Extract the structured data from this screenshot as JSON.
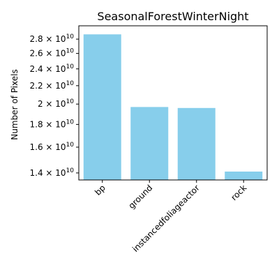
{
  "chart_data": {
    "type": "bar",
    "title": "SeasonalForestWinterNight",
    "xlabel": "",
    "ylabel": "Number of Pixels",
    "y_scale": "log",
    "ylim": [
      13500000000,
      30000000000
    ],
    "categories": [
      "bp",
      "ground",
      "instancedfoliageactor",
      "rock"
    ],
    "values": [
      28700000000,
      19700000000,
      19600000000,
      14100000000
    ],
    "bar_color": "#87ceeb",
    "y_ticks": [
      {
        "value": 14000000000,
        "mantissa": "1.4"
      },
      {
        "value": 16000000000,
        "mantissa": "1.6"
      },
      {
        "value": 18000000000,
        "mantissa": "1.8"
      },
      {
        "value": 20000000000,
        "mantissa": "2"
      },
      {
        "value": 22000000000,
        "mantissa": "2.2"
      },
      {
        "value": 24000000000,
        "mantissa": "2.4"
      },
      {
        "value": 26000000000,
        "mantissa": "2.6"
      },
      {
        "value": 28000000000,
        "mantissa": "2.8"
      }
    ],
    "y_tick_base": "10",
    "y_tick_exponent": "10",
    "grid": false,
    "legend": "none"
  }
}
